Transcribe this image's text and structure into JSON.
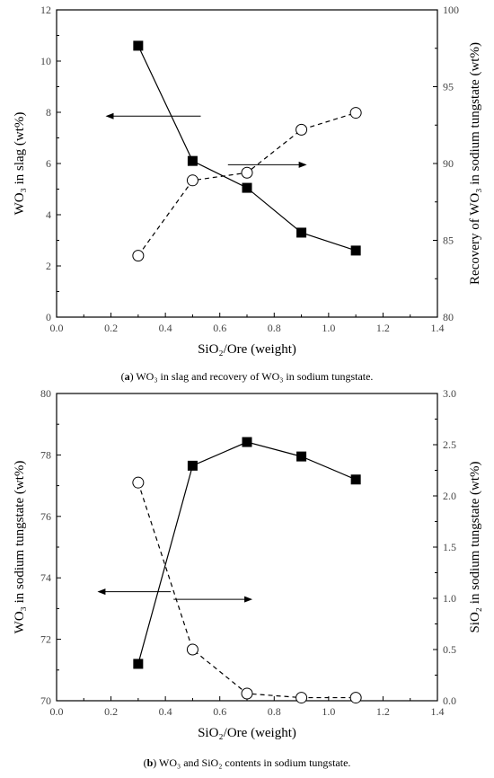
{
  "chart_data": [
    {
      "type": "line",
      "caption_letter": "a",
      "caption": "WO₃ in slag and recovery of WO₃ in sodium tungstate.",
      "xlabel": "SiO₂/Ore (weight)",
      "ylabel_left": "WO₃ in slag (wt%)",
      "ylabel_right": "Recovery of WO₃ in sodium tungstate (wt%)",
      "xlim": [
        0.0,
        1.4
      ],
      "xticks": [
        "0.0",
        "0.2",
        "0.4",
        "0.6",
        "0.8",
        "1.0",
        "1.2",
        "1.4"
      ],
      "ylim_left": [
        0,
        12
      ],
      "yticks_left": [
        "0",
        "2",
        "4",
        "6",
        "8",
        "10",
        "12"
      ],
      "ylim_right": [
        80,
        100
      ],
      "yticks_right": [
        "80",
        "85",
        "90",
        "95",
        "100"
      ],
      "grid": false,
      "x": [
        0.3,
        0.5,
        0.7,
        0.9,
        1.1
      ],
      "series": [
        {
          "axis": "left",
          "marker": "filled-square",
          "line": "solid",
          "values": [
            10.6,
            6.1,
            5.05,
            3.3,
            2.6
          ]
        },
        {
          "axis": "right",
          "marker": "open-circle",
          "line": "dashed",
          "values": [
            84.0,
            88.9,
            89.4,
            92.2,
            93.3
          ]
        }
      ],
      "arrows": [
        {
          "direction": "left",
          "from": [
            0.53,
            7.85
          ],
          "to": [
            0.18,
            7.85
          ]
        },
        {
          "direction": "right",
          "from": [
            0.63,
            5.95
          ],
          "to": [
            0.92,
            5.95
          ]
        }
      ]
    },
    {
      "type": "line",
      "caption_letter": "b",
      "caption": "WO₃ and SiO₂ contents in sodium tungstate.",
      "xlabel": "SiO₂/Ore (weight)",
      "ylabel_left": "WO₃ in sodium tungstate (wt%)",
      "ylabel_right": "SiO₂ in sodium tungstate (wt%)",
      "xlim": [
        0.0,
        1.4
      ],
      "xticks": [
        "0.0",
        "0.2",
        "0.4",
        "0.6",
        "0.8",
        "1.0",
        "1.2",
        "1.4"
      ],
      "ylim_left": [
        70,
        80
      ],
      "yticks_left": [
        "70",
        "72",
        "74",
        "76",
        "78",
        "80"
      ],
      "ylim_right": [
        0.0,
        3.0
      ],
      "yticks_right": [
        "0.0",
        "0.5",
        "1.0",
        "1.5",
        "2.0",
        "2.5",
        "3.0"
      ],
      "grid": false,
      "x": [
        0.3,
        0.5,
        0.7,
        0.9,
        1.1
      ],
      "series": [
        {
          "axis": "left",
          "marker": "filled-square",
          "line": "solid",
          "values": [
            71.2,
            77.65,
            78.42,
            77.95,
            77.2
          ]
        },
        {
          "axis": "right",
          "marker": "open-circle",
          "line": "dashed",
          "values": [
            2.13,
            0.5,
            0.07,
            0.03,
            0.03
          ]
        }
      ],
      "arrows": [
        {
          "direction": "left",
          "from": [
            0.42,
            73.55
          ],
          "to": [
            0.15,
            73.55
          ]
        },
        {
          "direction": "right",
          "from": [
            0.43,
            73.3
          ],
          "to": [
            0.72,
            73.3
          ]
        }
      ]
    }
  ]
}
